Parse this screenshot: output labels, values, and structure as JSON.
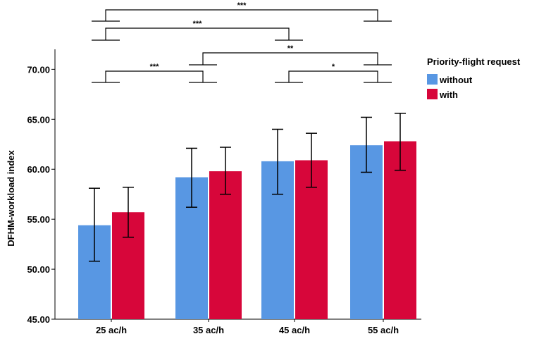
{
  "chart_data": {
    "type": "bar",
    "title": "",
    "xlabel": "",
    "ylabel": "DFHM-workload index",
    "ylim": [
      45,
      72
    ],
    "yticks": [
      "45.00",
      "50.00",
      "55.00",
      "60.00",
      "65.00",
      "70.00"
    ],
    "ytick_values": [
      45,
      50,
      55,
      60,
      65,
      70
    ],
    "categories": [
      "25 ac/h",
      "35 ac/h",
      "45 ac/h",
      "55 ac/h"
    ],
    "legend": {
      "title": "Priority-flight request",
      "position": "right"
    },
    "series": [
      {
        "name": "without",
        "color": "#5897e3",
        "values": [
          54.4,
          59.2,
          60.8,
          62.4
        ],
        "err_low": [
          50.8,
          56.2,
          57.5,
          59.7
        ],
        "err_high": [
          58.1,
          62.1,
          64.0,
          65.2
        ]
      },
      {
        "name": "with",
        "color": "#d7063a",
        "values": [
          55.7,
          59.8,
          60.9,
          62.8
        ],
        "err_low": [
          53.2,
          57.5,
          58.2,
          59.9
        ],
        "err_high": [
          58.2,
          62.2,
          63.6,
          65.6
        ]
      }
    ],
    "significance": [
      {
        "from": 0,
        "to": 3,
        "label": "***"
      },
      {
        "from": 0,
        "to": 2,
        "label": "***"
      },
      {
        "from": 1,
        "to": 3,
        "label": "**"
      },
      {
        "from": 0,
        "to": 1,
        "label": "***"
      },
      {
        "from": 2,
        "to": 3,
        "label": "*"
      }
    ]
  }
}
